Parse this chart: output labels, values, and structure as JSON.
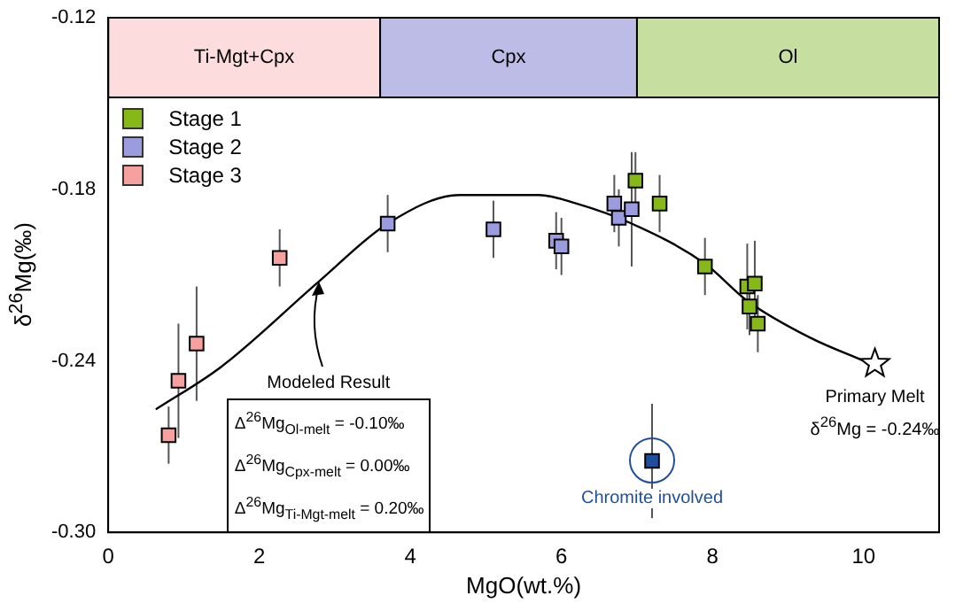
{
  "chart_data": {
    "type": "scatter",
    "xlabel": "MgO(wt.%)",
    "ylabel": "δ$^{26}$Mg(‰)",
    "xlim": [
      0,
      11
    ],
    "xticks": [
      0,
      2,
      4,
      6,
      8,
      10
    ],
    "ylim": [
      -0.3,
      -0.12
    ],
    "yticks": [
      {
        "value": -0.3,
        "label": "-0.30"
      },
      -0.24,
      -0.18,
      -0.12
    ],
    "grid": false,
    "legend": "top left",
    "marker": "square",
    "bands": [
      {
        "axis": "x",
        "from": 0,
        "to": 3.6,
        "label": "Ti-Mgt+Cpx",
        "color": "#fcdcdc"
      },
      {
        "axis": "x",
        "from": 3.6,
        "to": 7.0,
        "label": "Cpx",
        "color": "#bcbce6"
      },
      {
        "axis": "x",
        "from": 7.0,
        "to": 11,
        "label": "Ol",
        "color": "#c6dea0"
      }
    ],
    "series": [
      {
        "name": "Stage 1",
        "type": "scatter",
        "color": "#86b817",
        "x": [
          6.98,
          7.3,
          7.9,
          8.46,
          8.56,
          8.49,
          8.6
        ],
        "values": [
          -0.177,
          -0.185,
          -0.207,
          -0.214,
          -0.213,
          -0.221,
          -0.227
        ],
        "errors": [
          0.01,
          0.01,
          0.01,
          0.015,
          0.015,
          0.01,
          0.01
        ]
      },
      {
        "name": "Stage 2",
        "type": "scatter",
        "color": "#9b9be0",
        "x": [
          3.7,
          5.1,
          5.93,
          6.0,
          6.7,
          6.76,
          6.93
        ],
        "values": [
          -0.192,
          -0.194,
          -0.198,
          -0.2,
          -0.185,
          -0.19,
          -0.187
        ],
        "errors": [
          0.01,
          0.01,
          0.01,
          0.01,
          0.01,
          0.01,
          0.02
        ]
      },
      {
        "name": "Stage 3",
        "type": "scatter",
        "color": "#f7a0a0",
        "x": [
          0.8,
          0.93,
          1.17,
          2.27
        ],
        "values": [
          -0.266,
          -0.247,
          -0.234,
          -0.204
        ],
        "errors": [
          0.01,
          0.02,
          0.02,
          0.01
        ]
      },
      {
        "type": "scatter",
        "color": "#1f4e9c",
        "x": [
          7.2
        ],
        "values": [
          -0.275
        ],
        "errors": [
          0.02
        ]
      },
      {
        "type": "scatter",
        "color": "#ffffff",
        "marker": "star",
        "x": [
          10.15
        ],
        "values": [
          -0.241
        ]
      },
      {
        "type": "line",
        "color": "#000000",
        "marker": "none",
        "x": [
          0.63,
          1.5,
          2.8,
          3.7,
          4.66,
          5.46,
          5.7,
          6.2,
          6.93,
          7.9,
          8.46,
          9.3,
          10.0
        ],
        "values": [
          -0.257,
          -0.242,
          -0.212,
          -0.192,
          -0.182,
          -0.182,
          -0.182,
          -0.185,
          -0.192,
          -0.206,
          -0.219,
          -0.232,
          -0.24
        ]
      }
    ],
    "annotations": [
      {
        "text": "Modeled Result",
        "x": 2.8,
        "y": -0.212
      },
      "Δ$^{26}$Mg$_{Ol-melt}$ = -0.10‰",
      "Δ$^{26}$Mg$_{Cpx-melt}$ = 0.00‰",
      "Δ$^{26}$Mg$_{Ti-Mgt-melt}$ = 0.20‰",
      {
        "text": "Primary Melt",
        "x": 10.15,
        "y": -0.241
      },
      {
        "text": "δ$^{26}$Mg = -0.24‰",
        "x": 10.15,
        "y": -0.241
      },
      {
        "text": "Chromite involved",
        "x": 7.2,
        "y": -0.275
      }
    ]
  }
}
